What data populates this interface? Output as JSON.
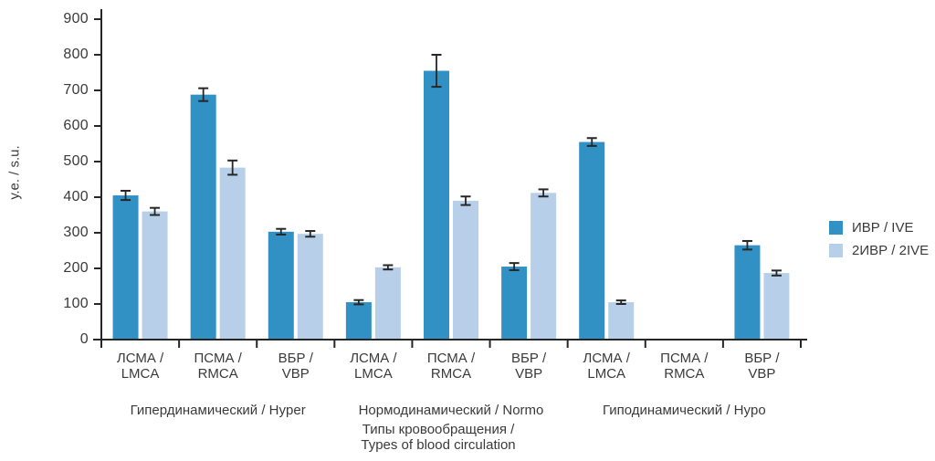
{
  "chart_data": {
    "type": "bar",
    "title": "",
    "ylabel": "у.е. / s.u.",
    "xlabel_line1": "Типы кровообращения /",
    "xlabel_line2": "Types of blood circulation",
    "ylim": [
      0,
      900
    ],
    "yticks": [
      0,
      100,
      200,
      300,
      400,
      500,
      600,
      700,
      800,
      900
    ],
    "grid": false,
    "legend_position": "right",
    "categories": [
      "ЛСМА /\nLMCA",
      "ПСМА /\nRMCA",
      "ВБР /\nVBP",
      "ЛСМА /\nLMCA",
      "ПСМА /\nRMCA",
      "ВБР /\nVBP",
      "ЛСМА /\nLMCA",
      "ПСМА /\nRMCA",
      "ВБР /\nVBP"
    ],
    "groups": [
      {
        "label": "Гипердинамический / Hyper",
        "start": 0,
        "end": 2
      },
      {
        "label": "Нормодинамический / Normo",
        "start": 3,
        "end": 5
      },
      {
        "label": "Гиподинамический / Hypo",
        "start": 6,
        "end": 8
      }
    ],
    "series": [
      {
        "name": "ИВР / IVE",
        "color": "#3191C5",
        "values": [
          405,
          688,
          303,
          105,
          755,
          205,
          555,
          null,
          265
        ],
        "errors": [
          13,
          18,
          8,
          6,
          45,
          10,
          11,
          null,
          12
        ]
      },
      {
        "name": "2ИВР / 2IVE",
        "color": "#B7CFE9",
        "values": [
          360,
          483,
          297,
          203,
          390,
          412,
          105,
          null,
          187
        ],
        "errors": [
          10,
          20,
          8,
          6,
          12,
          10,
          5,
          null,
          7
        ]
      }
    ],
    "axis_color": "#262626",
    "error_bar_color": "#262626",
    "text_color": "#3a3a3a"
  }
}
